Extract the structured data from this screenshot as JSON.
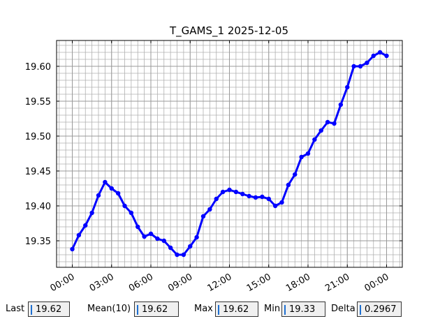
{
  "chart_data": {
    "type": "line",
    "title": "T_GAMS_1 2025-12-05",
    "x": [
      0,
      0.5,
      1,
      1.5,
      2,
      2.5,
      3,
      3.5,
      4,
      4.5,
      5,
      5.5,
      6,
      6.5,
      7,
      7.5,
      8,
      8.5,
      9,
      9.5,
      10,
      10.5,
      11,
      11.5,
      12,
      12.5,
      13,
      13.5,
      14,
      14.5,
      15,
      15.5,
      16,
      16.5,
      17,
      17.5,
      18,
      18.5,
      19,
      19.5,
      20,
      20.5,
      21,
      21.5,
      22,
      22.5,
      23,
      23.5,
      24
    ],
    "series": [
      {
        "name": "T_GAMS_1",
        "color": "#0000ff",
        "values": [
          19.338,
          19.358,
          19.372,
          19.39,
          19.415,
          19.434,
          19.425,
          19.418,
          19.4,
          19.39,
          19.37,
          19.356,
          19.36,
          19.353,
          19.35,
          19.34,
          19.33,
          19.33,
          19.342,
          19.355,
          19.385,
          19.395,
          19.41,
          19.42,
          19.423,
          19.42,
          19.417,
          19.414,
          19.412,
          19.413,
          19.41,
          19.4,
          19.405,
          19.43,
          19.445,
          19.47,
          19.475,
          19.495,
          19.508,
          19.52,
          19.518,
          19.545,
          19.57,
          19.6,
          19.6,
          19.605,
          19.615,
          19.62,
          19.615
        ]
      }
    ],
    "xlim": [
      -1.2,
      25.2
    ],
    "xticks": [
      {
        "value": 0,
        "label": "00:00"
      },
      {
        "value": 3,
        "label": "03:00"
      },
      {
        "value": 6,
        "label": "06:00"
      },
      {
        "value": 9,
        "label": "09:00"
      },
      {
        "value": 12,
        "label": "12:00"
      },
      {
        "value": 15,
        "label": "15:00"
      },
      {
        "value": 18,
        "label": "18:00"
      },
      {
        "value": 21,
        "label": "21:00"
      },
      {
        "value": 24,
        "label": "00:00"
      }
    ],
    "ylim": [
      19.312,
      19.637
    ],
    "yticks": [
      19.35,
      {
        "value": 19.4,
        "label": "19.40"
      },
      19.45,
      {
        "value": 19.5,
        "label": "19.50"
      },
      19.55,
      {
        "value": 19.6,
        "label": "19.60"
      }
    ],
    "grid": true
  },
  "fields": [
    {
      "label": "Last",
      "value": 19.62
    },
    {
      "label": "Mean(10)",
      "value": 19.62
    },
    {
      "label": "Max",
      "value": 19.62
    },
    {
      "label": "Min",
      "value": 19.33
    },
    {
      "label": "Delta",
      "value": 0.2967
    }
  ]
}
